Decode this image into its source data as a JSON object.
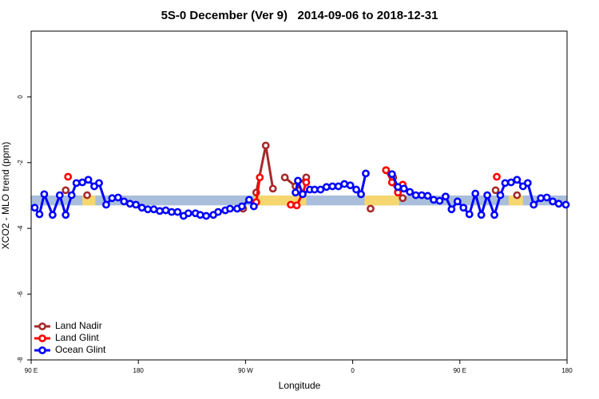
{
  "chart_data": {
    "type": "line",
    "title": "5S-0 December (Ver 9)   2014-09-06 to 2018-12-31",
    "xlabel": "Longitude",
    "ylabel": "XCO2 - MLO trend (ppm)",
    "xlim": [
      90,
      540
    ],
    "ylim": [
      -8,
      2
    ],
    "xticks": [
      {
        "value": 90,
        "label": "90 E"
      },
      180,
      {
        "value": 270,
        "label": "90 W"
      },
      {
        "value": 360,
        "label": "0"
      },
      {
        "value": 450,
        "label": "90 E"
      },
      {
        "value": 540,
        "label": "180"
      }
    ],
    "yticks": [
      -8,
      -6,
      -4,
      -2,
      0
    ],
    "legend": "bottom-left",
    "band": {
      "range": [
        -3.3,
        -3.0
      ],
      "color": "#a9bedb",
      "land_color": "#f6d66e",
      "land_segments": [
        [
          133,
          144
        ],
        [
          277,
          321
        ],
        [
          370,
          399
        ],
        [
          491,
          503
        ]
      ]
    },
    "series": [
      {
        "name": "Land Nadir",
        "color": "#a52a2a",
        "x": [
          119,
          128,
          137,
          200,
          268,
          274,
          279,
          287,
          293,
          298,
          303,
          312,
          321,
          350,
          375,
          380,
          388,
          394,
          398,
          402,
          440,
          480,
          490,
          498
        ],
        "values": [
          -2.84,
          null,
          -2.99,
          null,
          -3.4,
          null,
          -2.91,
          -1.48,
          -2.79,
          null,
          -2.45,
          -2.72,
          -2.45,
          null,
          -3.4,
          null,
          -2.23,
          -2.45,
          -2.89,
          -3.08,
          null,
          -2.84,
          null,
          -2.99
        ]
      },
      {
        "name": "Land Glint",
        "color": "#ff0000",
        "x": [
          121,
          200,
          279,
          282,
          295,
          308,
          313,
          318,
          321,
          350,
          388,
          393,
          398,
          402,
          440,
          481
        ],
        "values": [
          -2.43,
          null,
          -3.2,
          -2.45,
          null,
          -3.28,
          -3.3,
          -2.94,
          -2.6,
          null,
          -2.23,
          -2.6,
          -2.91,
          -2.67,
          null,
          -2.43
        ]
      },
      {
        "name": "Ocean Glint",
        "color": "#0000ff",
        "x": [
          93,
          97,
          101,
          108,
          114,
          119,
          124,
          128,
          133,
          138,
          143,
          147,
          153,
          158,
          163,
          168,
          173,
          178,
          183,
          188,
          193,
          198,
          203,
          208,
          213,
          218,
          222,
          228,
          232,
          237,
          243,
          247,
          253,
          257,
          263,
          267,
          273,
          277,
          295,
          312,
          314,
          318,
          324,
          328,
          333,
          338,
          343,
          348,
          353,
          358,
          363,
          367,
          371,
          382,
          393,
          398,
          403,
          408,
          413,
          418,
          423,
          428,
          433,
          438,
          443,
          448,
          453,
          458,
          463,
          468,
          473,
          479,
          484,
          488,
          493,
          498,
          503,
          507,
          512,
          518,
          523,
          528,
          533,
          539
        ],
        "values": [
          -3.37,
          -3.57,
          -2.96,
          -3.59,
          -2.99,
          -3.59,
          -2.99,
          -2.62,
          -2.6,
          -2.52,
          -2.72,
          -2.62,
          -3.28,
          -3.08,
          -3.06,
          -3.18,
          -3.25,
          -3.28,
          -3.37,
          -3.42,
          -3.42,
          -3.47,
          -3.45,
          -3.5,
          -3.5,
          -3.62,
          -3.54,
          -3.54,
          -3.59,
          -3.62,
          -3.59,
          -3.5,
          -3.45,
          -3.4,
          -3.4,
          -3.33,
          -3.13,
          -3.33,
          null,
          -2.91,
          -2.55,
          -2.96,
          -2.82,
          -2.82,
          -2.82,
          -2.74,
          -2.72,
          -2.72,
          -2.65,
          -2.69,
          -2.82,
          -2.96,
          -2.33,
          null,
          -2.35,
          -2.74,
          -2.79,
          -2.89,
          -2.99,
          -2.99,
          -3.01,
          -3.13,
          -3.16,
          -3.03,
          -3.42,
          -3.18,
          -3.37,
          -3.57,
          -2.94,
          -3.59,
          -2.99,
          -3.59,
          -2.99,
          -2.62,
          -2.6,
          -2.52,
          -2.72,
          -2.62,
          -3.28,
          -3.08,
          -3.06,
          -3.18,
          -3.25,
          -3.28
        ]
      }
    ]
  }
}
